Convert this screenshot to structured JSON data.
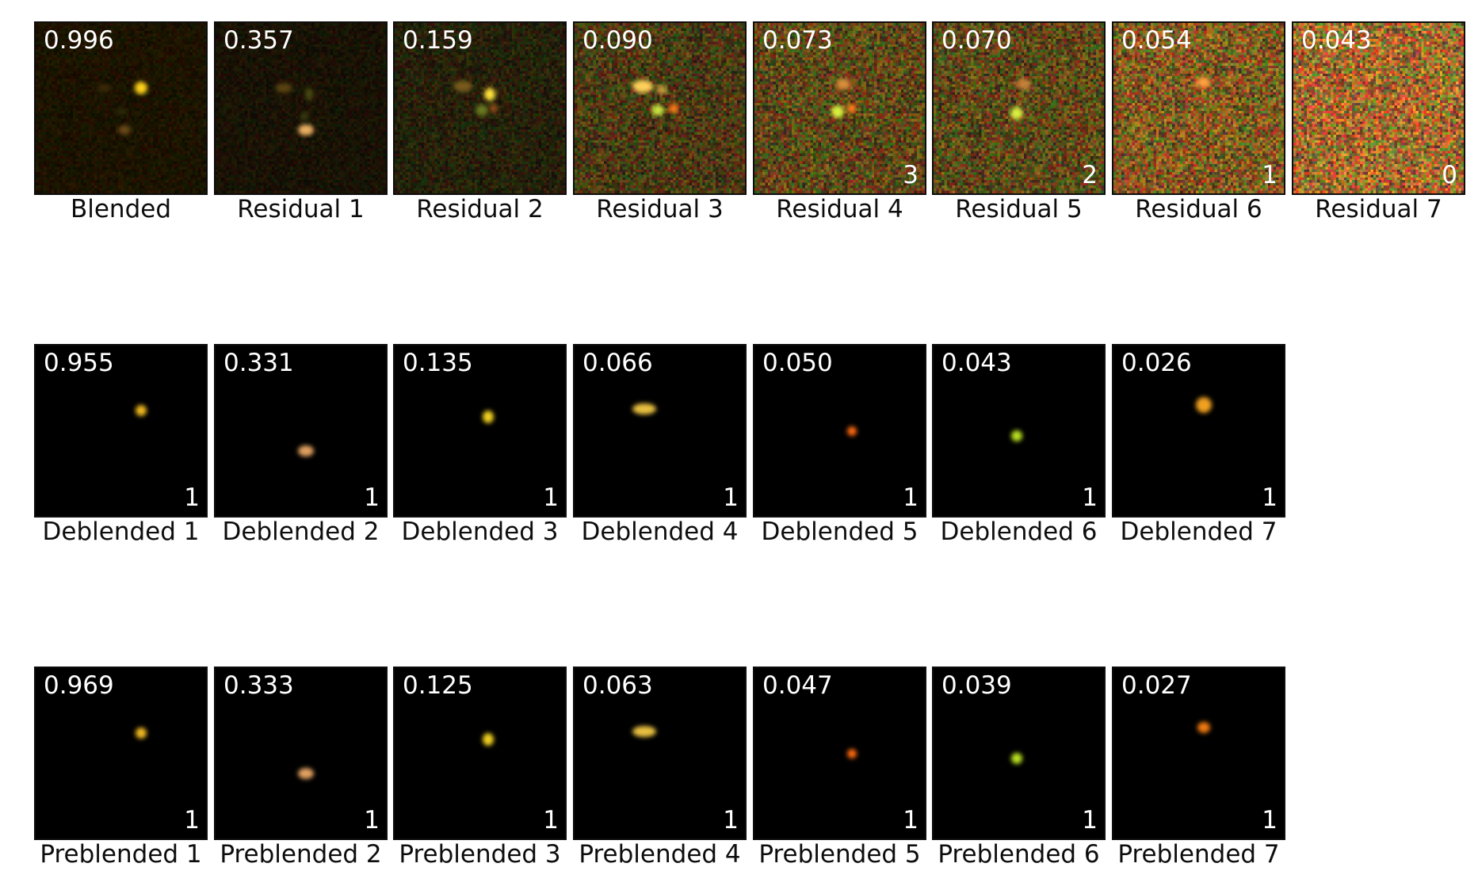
{
  "rows": [
    {
      "id": "residual-row",
      "tiles": [
        {
          "label": "Blended",
          "score": "0.996",
          "count": ""
        },
        {
          "label": "Residual 1",
          "score": "0.357",
          "count": ""
        },
        {
          "label": "Residual 2",
          "score": "0.159",
          "count": ""
        },
        {
          "label": "Residual 3",
          "score": "0.090",
          "count": ""
        },
        {
          "label": "Residual 4",
          "score": "0.073",
          "count": "3"
        },
        {
          "label": "Residual 5",
          "score": "0.070",
          "count": "2"
        },
        {
          "label": "Residual 6",
          "score": "0.054",
          "count": "1"
        },
        {
          "label": "Residual 7",
          "score": "0.043",
          "count": "0"
        }
      ]
    },
    {
      "id": "deblended-row",
      "tiles": [
        {
          "label": "Deblended 1",
          "score": "0.955",
          "count": "1"
        },
        {
          "label": "Deblended 2",
          "score": "0.331",
          "count": "1"
        },
        {
          "label": "Deblended 3",
          "score": "0.135",
          "count": "1"
        },
        {
          "label": "Deblended 4",
          "score": "0.066",
          "count": "1"
        },
        {
          "label": "Deblended 5",
          "score": "0.050",
          "count": "1"
        },
        {
          "label": "Deblended 6",
          "score": "0.043",
          "count": "1"
        },
        {
          "label": "Deblended 7",
          "score": "0.026",
          "count": "1"
        }
      ]
    },
    {
      "id": "preblended-row",
      "tiles": [
        {
          "label": "Preblended 1",
          "score": "0.969",
          "count": "1"
        },
        {
          "label": "Preblended 2",
          "score": "0.333",
          "count": "1"
        },
        {
          "label": "Preblended 3",
          "score": "0.125",
          "count": "1"
        },
        {
          "label": "Preblended 4",
          "score": "0.063",
          "count": "1"
        },
        {
          "label": "Preblended 5",
          "score": "0.047",
          "count": "1"
        },
        {
          "label": "Preblended 6",
          "score": "0.039",
          "count": "1"
        },
        {
          "label": "Preblended 7",
          "score": "0.027",
          "count": "1"
        }
      ]
    }
  ]
}
